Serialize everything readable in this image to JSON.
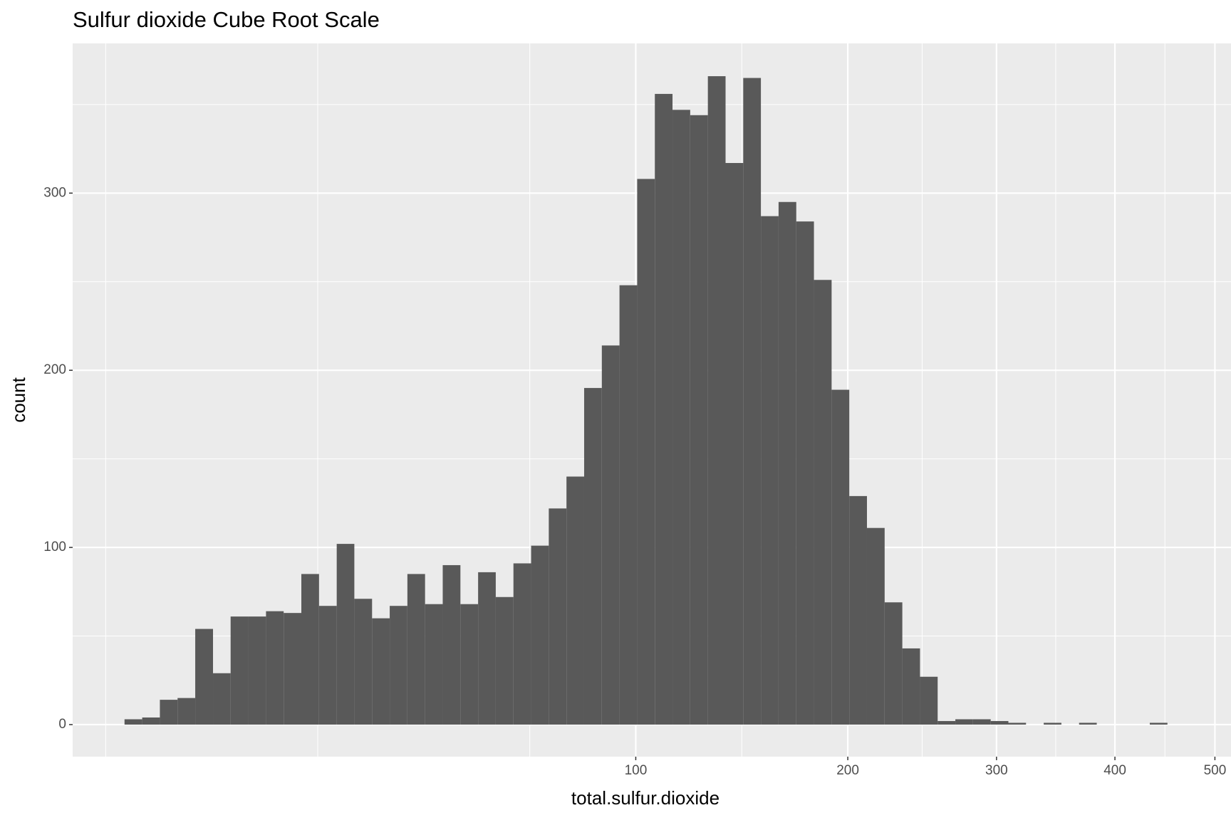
{
  "chart_data": {
    "type": "histogram",
    "title": "Sulfur dioxide Cube Root Scale",
    "x_label": "total.sulfur.dioxide",
    "y_label": "count",
    "x_transform": "cbrt",
    "bins": [
      5.2,
      6.16,
      7.23,
      8.42,
      9.73,
      11.18,
      12.75,
      14.47,
      16.34,
      18.36,
      20.54,
      22.89,
      25.41,
      28.1,
      30.99,
      34.06,
      37.33,
      40.8,
      44.48,
      48.38,
      52.5,
      56.84,
      61.42,
      66.24,
      71.3,
      76.62,
      82.19,
      88.03,
      94.13,
      100.52,
      107.18,
      114.13,
      121.38,
      128.93,
      136.79,
      144.96,
      153.44,
      162.25,
      171.4,
      180.88,
      190.7,
      200.87,
      211.4,
      222.29,
      233.55,
      245.19,
      257.19,
      269.59,
      282.38,
      295.57,
      309.16,
      323.14,
      337.57,
      352.42,
      367.69,
      383.4,
      399.55,
      416.13,
      433.18,
      450.68
    ],
    "values": [
      3,
      4,
      14,
      15,
      54,
      29,
      61,
      61,
      64,
      63,
      85,
      67,
      102,
      71,
      60,
      67,
      85,
      68,
      90,
      68,
      86,
      72,
      91,
      101,
      122,
      140,
      190,
      214,
      248,
      308,
      356,
      347,
      344,
      366,
      317,
      365,
      287,
      295,
      284,
      251,
      189,
      129,
      111,
      69,
      43,
      27,
      2,
      3,
      3,
      2,
      1,
      0,
      1,
      0,
      1,
      0,
      0,
      0,
      1
    ],
    "color": "#595959",
    "xlim": [
      2.97,
      517.5
    ],
    "xticks": [
      100,
      200,
      300,
      400,
      500
    ],
    "ylim": [
      -18.1,
      384.5
    ],
    "yticks": [
      0,
      100,
      200,
      300
    ],
    "grid": true
  }
}
